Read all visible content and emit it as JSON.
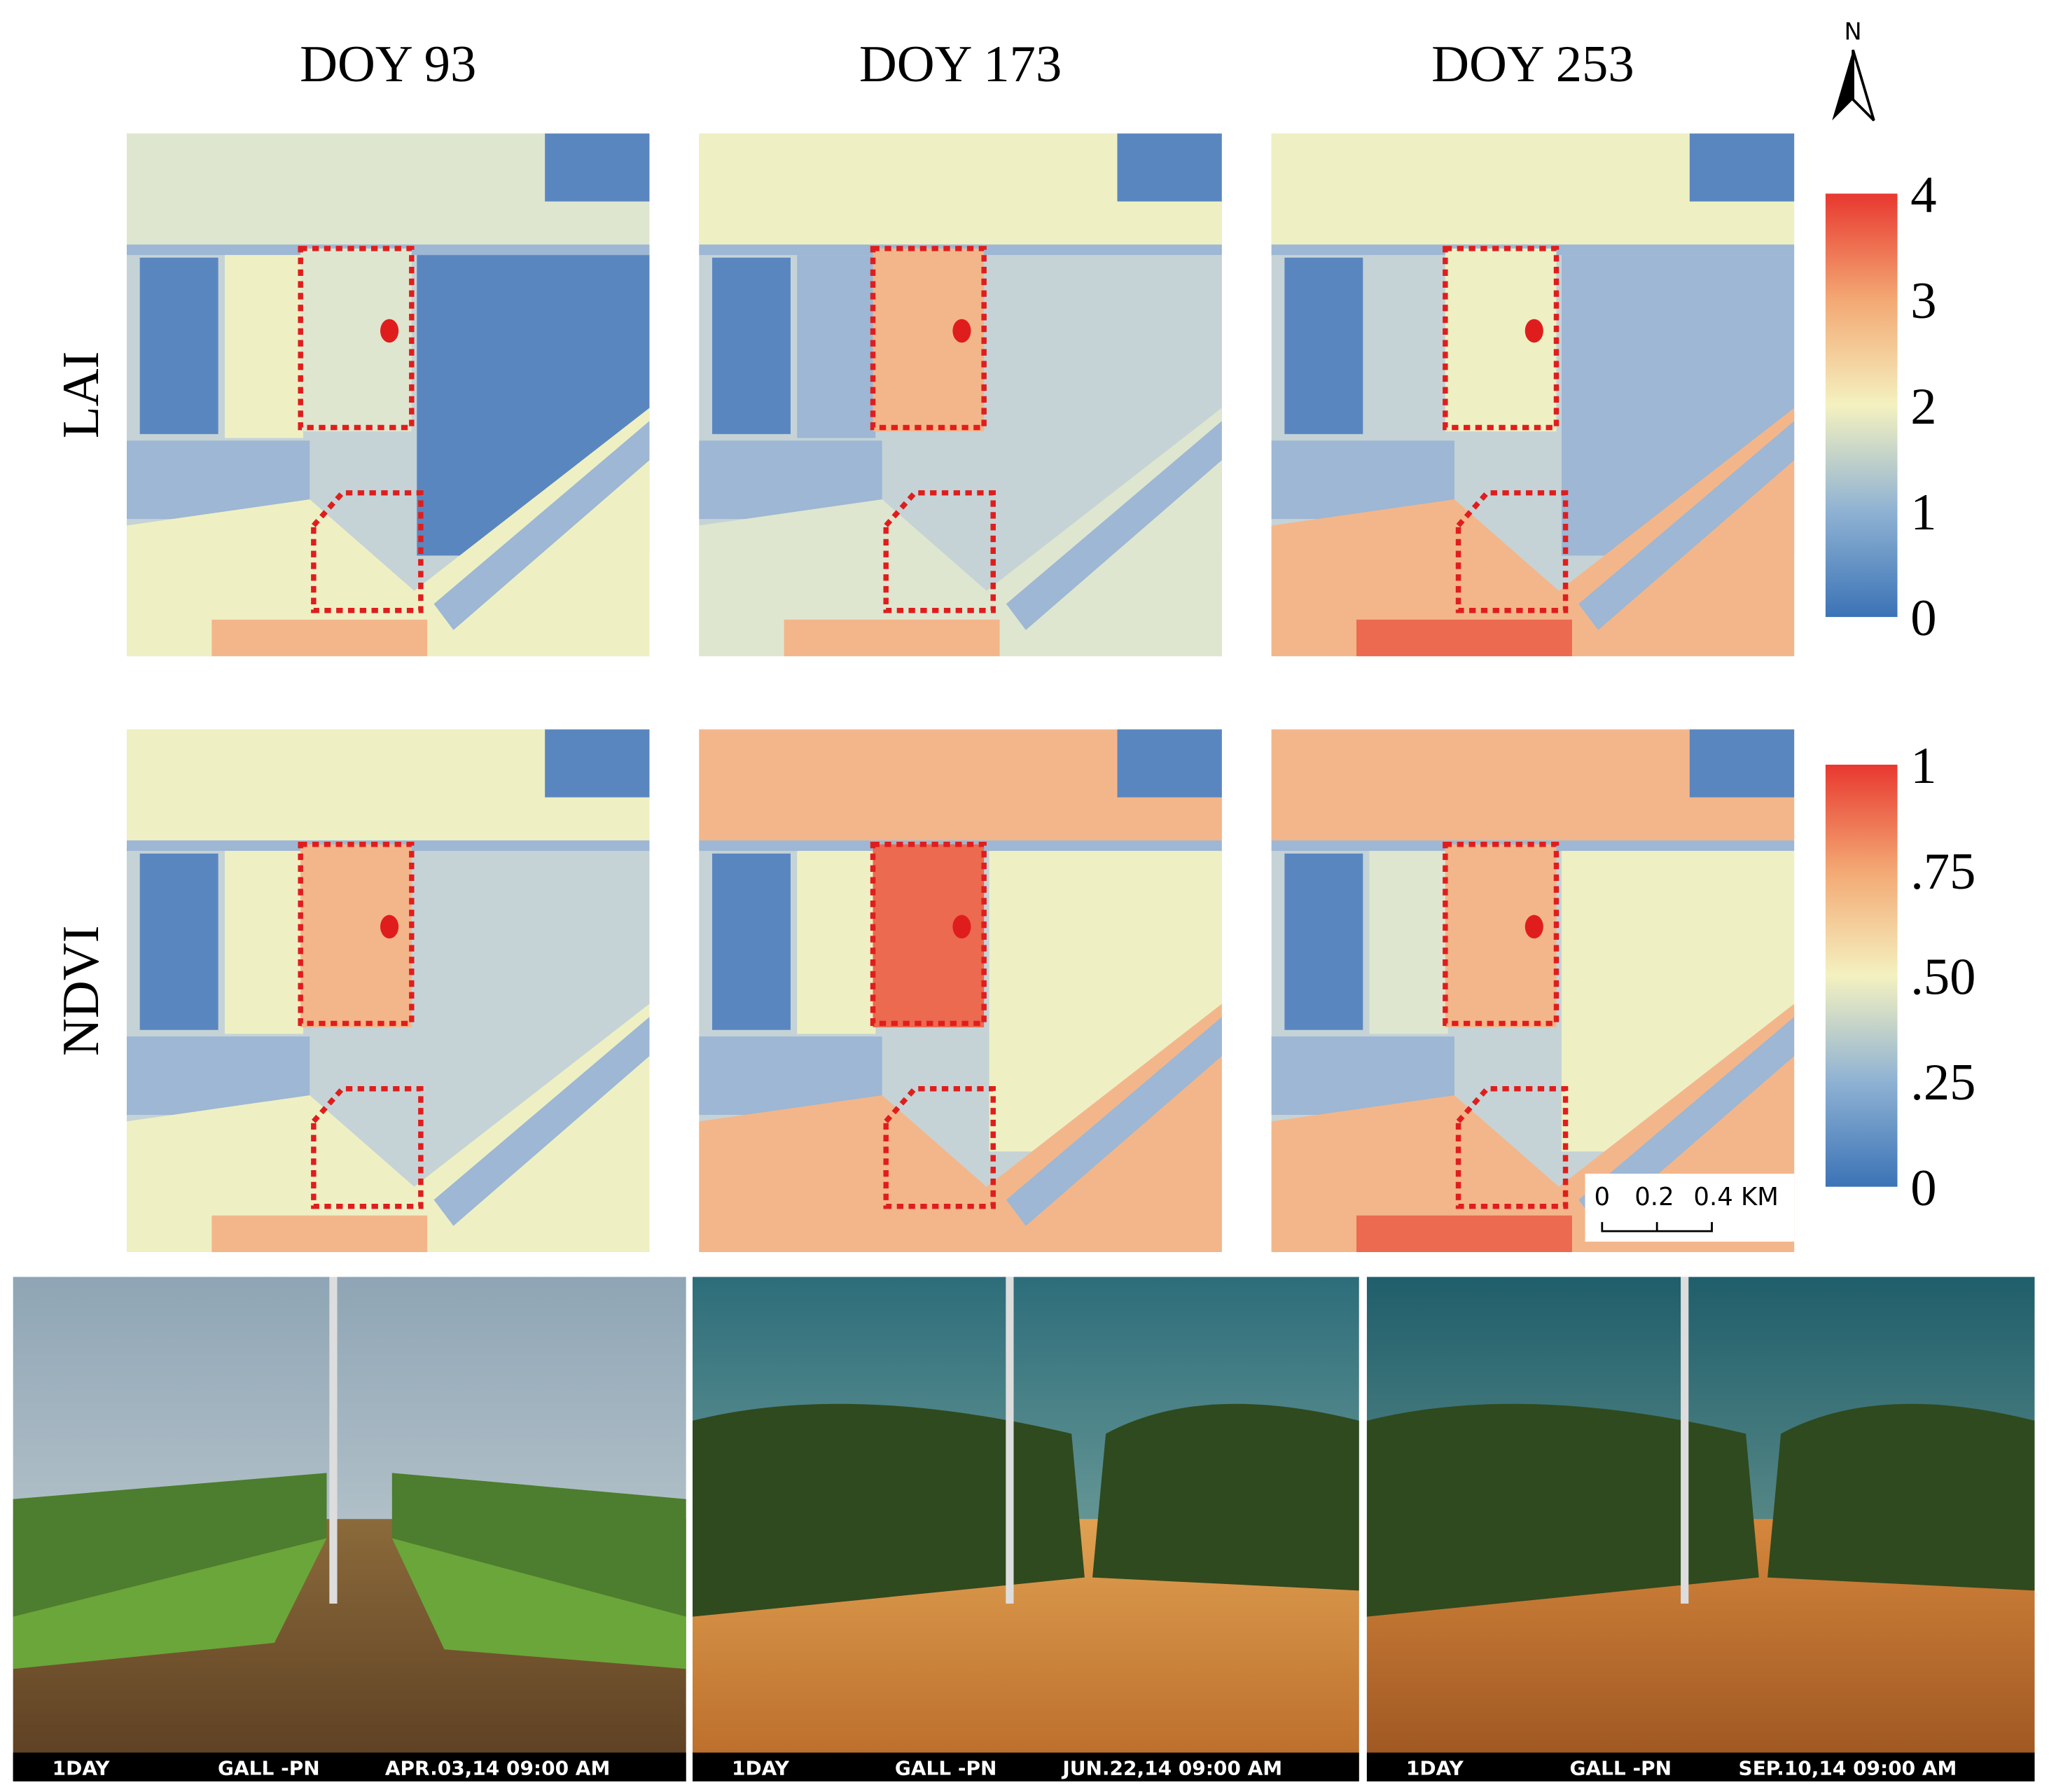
{
  "columns": [
    "DOY 93",
    "DOY 173",
    "DOY 253"
  ],
  "rows": [
    "LAI",
    "NDVI"
  ],
  "north": "N",
  "colorbars": [
    {
      "range": [
        0,
        4
      ],
      "ticks": [
        0,
        1,
        2,
        3,
        4
      ]
    },
    {
      "range": [
        0,
        1
      ],
      "ticks": [
        0,
        {
          "value": 0.25,
          "label": ".25"
        },
        {
          "value": 0.5,
          "label": ".50"
        },
        {
          "value": 0.75,
          "label": ".75"
        },
        1
      ]
    }
  ],
  "scale_bar": {
    "labels": [
      "0",
      "0.2",
      "0.4 KM"
    ]
  },
  "photos": [
    {
      "left": "1DAY",
      "center": "GALL -PN",
      "right": "APR.03,14 09:00 AM"
    },
    {
      "left": "1DAY",
      "center": "GALL -PN",
      "right": "JUN.22,14 09:00 AM"
    },
    {
      "left": "1DAY",
      "center": "GALL -PN",
      "right": "SEP.10,14 09:00 AM"
    }
  ]
}
